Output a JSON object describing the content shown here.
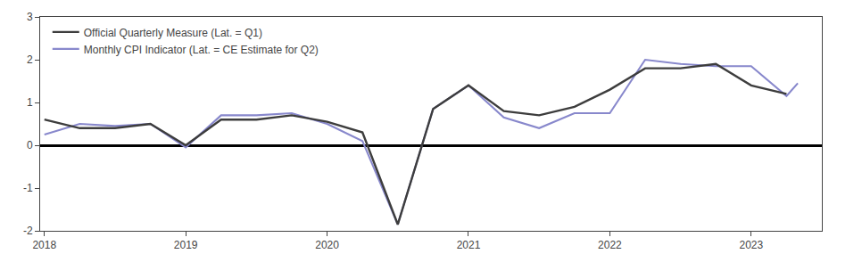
{
  "chart_data": {
    "type": "line",
    "series": [
      {
        "name": "Official Quarterly Measure (Lat. = Q1)",
        "color": "#3d3d3d",
        "x": [
          2018.0,
          2018.25,
          2018.5,
          2018.75,
          2019.0,
          2019.25,
          2019.5,
          2019.75,
          2020.0,
          2020.25,
          2020.5,
          2020.75,
          2021.0,
          2021.25,
          2021.5,
          2021.75,
          2022.0,
          2022.25,
          2022.5,
          2022.75,
          2023.0,
          2023.25
        ],
        "values": [
          0.6,
          0.4,
          0.4,
          0.5,
          0.0,
          0.6,
          0.6,
          0.7,
          0.55,
          0.3,
          -1.85,
          0.85,
          1.4,
          0.8,
          0.7,
          0.9,
          1.3,
          1.8,
          1.8,
          1.9,
          1.4,
          1.2
        ]
      },
      {
        "name": "Monthly CPI Indicator (Lat. = CE Estimate for Q2)",
        "color": "#8888cc",
        "x": [
          2018.0,
          2018.25,
          2018.5,
          2018.75,
          2019.0,
          2019.25,
          2019.5,
          2019.75,
          2020.0,
          2020.25,
          2020.5,
          2020.75,
          2021.0,
          2021.25,
          2021.5,
          2021.75,
          2022.0,
          2022.25,
          2022.5,
          2022.75,
          2023.0,
          2023.25,
          2023.33
        ],
        "values": [
          0.25,
          0.5,
          0.45,
          0.5,
          -0.05,
          0.7,
          0.7,
          0.75,
          0.5,
          0.1,
          -1.85,
          0.85,
          1.4,
          0.65,
          0.4,
          0.75,
          0.75,
          2.0,
          1.9,
          1.85,
          1.85,
          1.15,
          1.45
        ]
      }
    ],
    "xlim": [
      2017.97,
      2023.5
    ],
    "xticks": [
      2018,
      2019,
      2020,
      2021,
      2022,
      2023
    ],
    "ylim": [
      -2,
      3
    ],
    "yticks": [
      -2,
      -1,
      0,
      1,
      2,
      3
    ],
    "y2lim": [
      -2,
      3
    ],
    "y2ticks": [
      -2,
      -1,
      0,
      1,
      2,
      3
    ],
    "grid": false,
    "legend": "upper left"
  }
}
